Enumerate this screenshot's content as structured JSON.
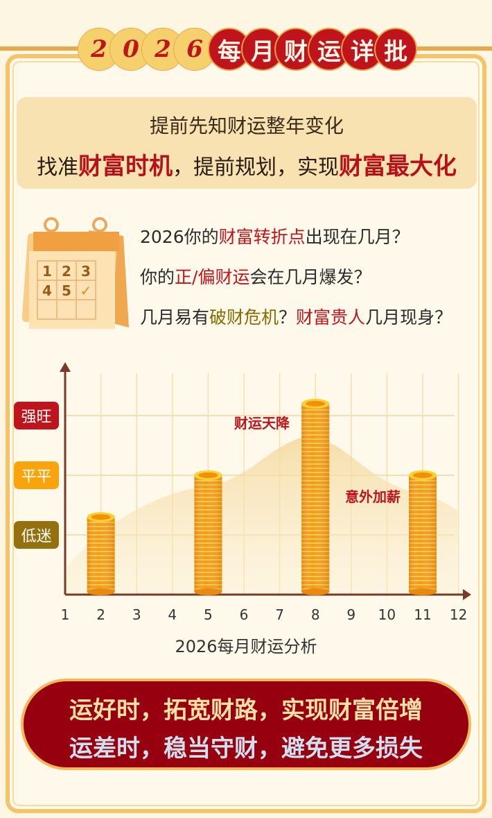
{
  "header": {
    "year_digits": [
      "2",
      "0",
      "2",
      "6"
    ],
    "title_chars": [
      "每",
      "月",
      "财",
      "运",
      "详",
      "批"
    ]
  },
  "intro": {
    "line1": "提前先知财运整年变化",
    "line2": [
      {
        "text": "找准",
        "hl": false
      },
      {
        "text": "财富时机",
        "hl": true
      },
      {
        "text": "，提前规划，实现",
        "hl": false
      },
      {
        "text": "财富最大化",
        "hl": true
      }
    ]
  },
  "calendar": {
    "cells": [
      "1",
      "2",
      "3",
      "4",
      "5",
      "✓"
    ]
  },
  "questions": [
    [
      {
        "text": "2026你的",
        "color": "#2b2b2b"
      },
      {
        "text": "财富转折点",
        "color": "#c0141c"
      },
      {
        "text": "出现在几月？",
        "color": "#2b2b2b"
      }
    ],
    [
      {
        "text": "你的",
        "color": "#2b2b2b"
      },
      {
        "text": "正/偏财运",
        "color": "#c0141c"
      },
      {
        "text": "会在几月爆发？",
        "color": "#2b2b2b"
      }
    ],
    [
      {
        "text": "几月易有",
        "color": "#2b2b2b"
      },
      {
        "text": "破财危机",
        "color": "#8a6a00"
      },
      {
        "text": "？",
        "color": "#2b2b2b"
      },
      {
        "text": "财富贵人",
        "color": "#c0141c"
      },
      {
        "text": "几月现身？",
        "color": "#2b2b2b"
      }
    ]
  ],
  "chart_data": {
    "type": "bar",
    "xlabel": "2026每月财运分析",
    "x_ticks": [
      "1",
      "2",
      "3",
      "4",
      "5",
      "6",
      "7",
      "8",
      "9",
      "10",
      "11",
      "12"
    ],
    "levels": [
      {
        "label": "低迷",
        "value": 1,
        "color": "#94700e"
      },
      {
        "label": "平平",
        "value": 2,
        "color": "#f9a40c"
      },
      {
        "label": "强旺",
        "value": 3,
        "color": "#c0141c"
      }
    ],
    "ylim": [
      0,
      3.6
    ],
    "bars": [
      {
        "month": 2,
        "value": 1.3
      },
      {
        "month": 5,
        "value": 2.0
      },
      {
        "month": 8,
        "value": 3.2
      },
      {
        "month": 11,
        "value": 2.0
      }
    ],
    "annotations": [
      {
        "text": "财运天降",
        "month": 8
      },
      {
        "text": "意外加薪",
        "month": 11
      }
    ],
    "grid": true
  },
  "banner": {
    "line1": "运好时，拓宽财路，实现财富倍增",
    "line2": "运差时，稳当守财，避免更多损失"
  }
}
